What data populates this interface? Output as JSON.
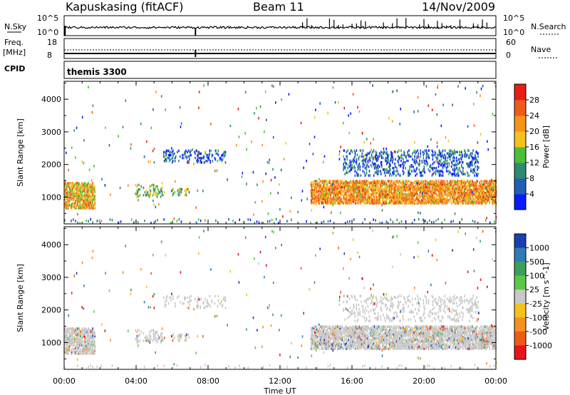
{
  "header": {
    "station": "Kapuskasing (fitACF)",
    "beam": "Beam 11",
    "date": "14/Nov/2009"
  },
  "top_panels": {
    "nsky_label": "N.Sky",
    "nsky_ticks": [
      "10^5",
      "10^0"
    ],
    "nsearch_label": "N.Search",
    "nsearch_ticks": [
      "10^5",
      "10^0"
    ],
    "freq_label": "Freq.",
    "freq_unit": "[MHz]",
    "freq_ticks": [
      "18",
      "8"
    ],
    "nave_label": "Nave",
    "nave_ticks": [
      "60",
      "0"
    ],
    "cpid_label": "CPID",
    "cpid_value": "themis 3300"
  },
  "axes": {
    "ylabel": "Slant Range [km]",
    "xlabel": "Time UT",
    "y_ticks": [
      "1000",
      "2000",
      "3000",
      "4000"
    ],
    "x_ticks": [
      "00:00",
      "04:00",
      "08:00",
      "12:00",
      "16:00",
      "20:00",
      "00:00"
    ]
  },
  "power_scale": {
    "label": "Power [dB]",
    "ticks": [
      "4",
      "8",
      "12",
      "16",
      "20",
      "24",
      "28"
    ],
    "colors": [
      "#0a1cff",
      "#1f5fb4",
      "#2e8a70",
      "#4bbf3a",
      "#f4c21a",
      "#f5931a",
      "#f05a18",
      "#e81e14"
    ]
  },
  "velocity_scale": {
    "label": "Velocity [m s^-1]",
    "ticks": [
      "1000",
      "500",
      "100",
      "25",
      "-25",
      "-100",
      "-500",
      "-1000"
    ],
    "colors": [
      "#1a3fb0",
      "#2e7db8",
      "#3aa05a",
      "#5cc84a",
      "#c8c8c8",
      "#f4c21a",
      "#f5911c",
      "#f05a18",
      "#e8141a"
    ]
  },
  "chart_data": [
    {
      "type": "heatmap",
      "title": "Power",
      "xlabel": "Time UT",
      "ylabel": "Slant Range [km]",
      "xlim": [
        "00:00",
        "24:00"
      ],
      "ylim": [
        180,
        4550
      ],
      "colorbar": {
        "label": "Power [dB]",
        "range": [
          0,
          32
        ]
      },
      "regions": [
        {
          "t_start": 0.0,
          "t_end": 1.7,
          "range_start": 700,
          "range_end": 1500,
          "power_dB": 20
        },
        {
          "t_start": 3.9,
          "t_end": 5.5,
          "range_start": 1050,
          "range_end": 1450,
          "power_dB": 14
        },
        {
          "t_start": 6.0,
          "t_end": 7.0,
          "range_start": 1100,
          "range_end": 1300,
          "power_dB": 12
        },
        {
          "t_start": 13.7,
          "t_end": 24.0,
          "range_start": 850,
          "range_end": 1550,
          "power_dB": 22
        },
        {
          "t_start": 5.5,
          "t_end": 9.0,
          "range_start": 2100,
          "range_end": 2500,
          "power_dB": 6
        },
        {
          "t_start": 15.5,
          "t_end": 23.0,
          "range_start": 1700,
          "range_end": 2500,
          "power_dB": 6
        }
      ]
    },
    {
      "type": "heatmap",
      "title": "Velocity",
      "xlabel": "Time UT",
      "ylabel": "Slant Range [km]",
      "xlim": [
        "00:00",
        "24:00"
      ],
      "ylim": [
        180,
        4550
      ],
      "colorbar": {
        "label": "Velocity [m s^-1]",
        "range": [
          -1000,
          1000
        ]
      },
      "regions": [
        {
          "t_start": 0.0,
          "t_end": 1.7,
          "range_start": 700,
          "range_end": 1500,
          "velocity": 0
        },
        {
          "t_start": 3.9,
          "t_end": 5.5,
          "range_start": 1050,
          "range_end": 1450,
          "velocity": 0
        },
        {
          "t_start": 13.7,
          "t_end": 24.0,
          "range_start": 850,
          "range_end": 1550,
          "velocity": 0
        },
        {
          "t_start": 5.5,
          "t_end": 9.0,
          "range_start": 2100,
          "range_end": 2500,
          "velocity": 0
        }
      ]
    }
  ]
}
